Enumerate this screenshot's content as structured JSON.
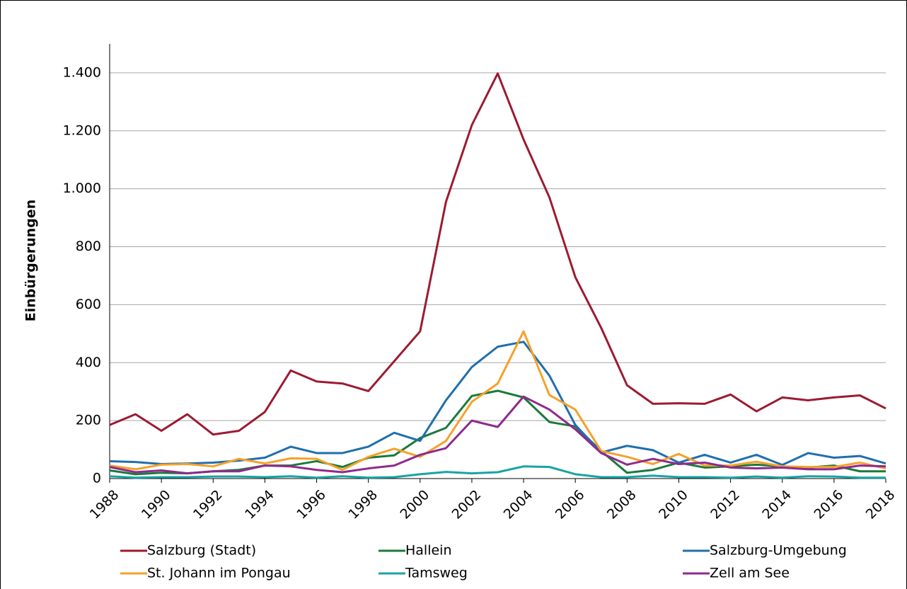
{
  "chart_data": {
    "type": "line",
    "y_label": "Einbürgerungen",
    "x": [
      1988,
      1989,
      1990,
      1991,
      1992,
      1993,
      1994,
      1995,
      1996,
      1997,
      1998,
      1999,
      2000,
      2001,
      2002,
      2003,
      2004,
      2005,
      2006,
      2007,
      2008,
      2009,
      2010,
      2011,
      2012,
      2013,
      2014,
      2015,
      2016,
      2017,
      2018
    ],
    "xlim": [
      1988,
      2018
    ],
    "xticks": [
      1988,
      1990,
      1992,
      1994,
      1996,
      1998,
      2000,
      2002,
      2004,
      2006,
      2008,
      2010,
      2012,
      2014,
      2016,
      2018
    ],
    "ylim": [
      0,
      1500
    ],
    "yticks": [
      0,
      200,
      400,
      600,
      800,
      {
        "value": 1000,
        "label": "1.000"
      },
      {
        "value": 1200,
        "label": "1.200"
      },
      {
        "value": 1400,
        "label": "1.400"
      }
    ],
    "grid": true,
    "legend": "bottom",
    "series": [
      {
        "name": "Salzburg (Stadt)",
        "color": "#9b1b30",
        "values": [
          185,
          222,
          165,
          222,
          152,
          165,
          230,
          373,
          335,
          328,
          302,
          405,
          508,
          955,
          1220,
          1398,
          1170,
          970,
          695,
          520,
          322,
          258,
          260,
          258,
          290,
          232,
          280,
          270,
          280,
          287,
          242
        ]
      },
      {
        "name": "Hallein",
        "color": "#1a7a3a",
        "values": [
          28,
          15,
          20,
          18,
          25,
          30,
          45,
          45,
          60,
          40,
          72,
          80,
          140,
          175,
          285,
          303,
          280,
          195,
          180,
          95,
          20,
          30,
          55,
          38,
          42,
          48,
          42,
          38,
          45,
          25,
          25
        ]
      },
      {
        "name": "Salzburg-Umgebung",
        "color": "#1f6fad",
        "values": [
          60,
          57,
          50,
          52,
          55,
          62,
          72,
          110,
          88,
          88,
          110,
          158,
          130,
          270,
          385,
          455,
          472,
          355,
          185,
          90,
          113,
          98,
          55,
          82,
          55,
          82,
          47,
          88,
          72,
          78,
          52
        ]
      },
      {
        "name": "St. Johann im Pongau",
        "color": "#f5a12a",
        "values": [
          45,
          32,
          48,
          50,
          42,
          68,
          52,
          70,
          68,
          30,
          75,
          103,
          75,
          130,
          265,
          328,
          508,
          288,
          238,
          95,
          75,
          50,
          85,
          45,
          45,
          58,
          42,
          40,
          40,
          55,
          35
        ]
      },
      {
        "name": "Tamsweg",
        "color": "#1aa3a3",
        "values": [
          8,
          3,
          5,
          5,
          7,
          7,
          5,
          8,
          3,
          8,
          3,
          5,
          15,
          23,
          18,
          22,
          42,
          40,
          15,
          5,
          5,
          10,
          5,
          5,
          3,
          7,
          3,
          8,
          7,
          3,
          3
        ]
      },
      {
        "name": "Zell am See",
        "color": "#8e2a8e",
        "values": [
          40,
          22,
          28,
          18,
          25,
          25,
          45,
          42,
          30,
          22,
          35,
          45,
          82,
          105,
          200,
          178,
          283,
          238,
          170,
          88,
          48,
          68,
          50,
          55,
          38,
          35,
          38,
          32,
          32,
          45,
          42
        ]
      }
    ]
  }
}
